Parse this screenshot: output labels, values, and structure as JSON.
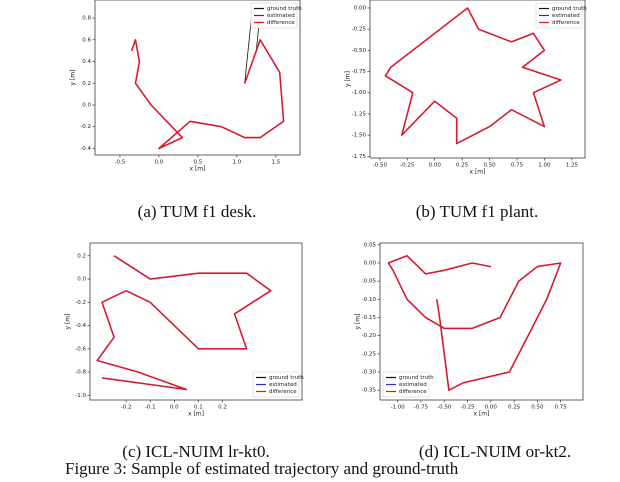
{
  "chart_data": [
    {
      "type": "line",
      "caption": "(a) TUM f1 desk.",
      "xlabel": "x [m]",
      "ylabel": "y [m]",
      "legend": "upper right",
      "xlim": [
        -0.82,
        1.81
      ],
      "ylim": [
        -0.46,
        0.966
      ],
      "xticks": [
        -0.5,
        {
          "value": 0,
          "label": "0.0"
        },
        0.5,
        {
          "value": 1,
          "label": "1.0"
        },
        1.5
      ],
      "yticks": [
        -0.4,
        -0.2,
        {
          "value": 0,
          "label": "0.0"
        },
        0.2,
        0.4,
        0.6,
        0.8
      ],
      "series": [
        {
          "name": "ground truth",
          "color": "#111111",
          "x": [
            -0.35,
            -0.3,
            -0.25,
            -0.3,
            -0.1,
            0.1,
            0.3,
            0.0,
            0.4,
            0.8,
            1.1,
            1.3,
            1.6,
            1.55,
            1.3,
            1.15,
            1.1,
            1.2,
            1.3,
            1.25
          ],
          "values": [
            0.5,
            0.6,
            0.4,
            0.2,
            0.0,
            -0.15,
            -0.3,
            -0.4,
            -0.15,
            -0.2,
            -0.3,
            -0.3,
            -0.15,
            0.3,
            0.6,
            0.3,
            0.2,
            0.9,
            0.85,
            0.5
          ]
        },
        {
          "name": "estimated",
          "color": "#2a2ad0",
          "x": [
            -0.35,
            -0.3,
            -0.25,
            -0.3,
            -0.1,
            0.1,
            0.3,
            0.0,
            0.4,
            0.8,
            1.1,
            1.3,
            1.6,
            1.55,
            1.3,
            1.15,
            1.1
          ],
          "values": [
            0.5,
            0.6,
            0.4,
            0.2,
            0.0,
            -0.15,
            -0.3,
            -0.4,
            -0.15,
            -0.2,
            -0.3,
            -0.3,
            -0.15,
            0.3,
            0.6,
            0.3,
            0.2
          ]
        },
        {
          "name": "difference",
          "color": "#e8141e",
          "x": [
            -0.35,
            -0.3,
            -0.25,
            -0.3,
            -0.1,
            0.1,
            0.3,
            0.0,
            0.4,
            0.8,
            1.1,
            1.3,
            1.6,
            1.55,
            1.3,
            1.15,
            1.1
          ],
          "values": [
            0.5,
            0.6,
            0.4,
            0.2,
            0.0,
            -0.15,
            -0.3,
            -0.4,
            -0.15,
            -0.2,
            -0.3,
            -0.3,
            -0.15,
            0.3,
            0.6,
            0.3,
            0.2
          ]
        }
      ]
    },
    {
      "type": "line",
      "caption": "(b) TUM f1 plant.",
      "xlabel": "x [m]",
      "ylabel": "y [m]",
      "legend": "upper right",
      "xlim": [
        -0.59,
        1.37
      ],
      "ylim": [
        -1.77,
        0.094
      ],
      "xticks": [
        {
          "value": -0.5,
          "label": "-0.50"
        },
        -0.25,
        {
          "value": 0,
          "label": "0.00"
        },
        0.25,
        {
          "value": 0.5,
          "label": "0.50"
        },
        0.75,
        {
          "value": 1,
          "label": "1.00"
        },
        1.25
      ],
      "yticks": [
        -1.75,
        {
          "value": -1.5,
          "label": "-1.50"
        },
        -1.25,
        {
          "value": -1,
          "label": "-1.00"
        },
        -0.75,
        {
          "value": -0.5,
          "label": "-0.50"
        },
        -0.25,
        {
          "value": 0,
          "label": "0.00"
        }
      ],
      "series": [
        {
          "name": "ground truth",
          "color": "#111111",
          "x": [
            -0.4,
            -0.2,
            0.0,
            0.2,
            0.3,
            0.4,
            0.7,
            0.9,
            1.0,
            0.8,
            1.15,
            0.9,
            1.0,
            0.7,
            0.5,
            0.2,
            0.2,
            0.0,
            -0.3,
            -0.2,
            -0.45,
            -0.4
          ],
          "values": [
            -0.7,
            -0.5,
            -0.3,
            -0.1,
            0.0,
            -0.25,
            -0.4,
            -0.3,
            -0.5,
            -0.7,
            -0.85,
            -1.0,
            -1.4,
            -1.2,
            -1.4,
            -1.6,
            -1.3,
            -1.1,
            -1.5,
            -1.0,
            -0.8,
            -0.7
          ]
        },
        {
          "name": "estimated",
          "color": "#2a2ad0",
          "x": [
            -0.4,
            -0.2,
            0.0,
            0.2,
            0.3,
            0.4,
            0.7,
            0.9,
            1.0,
            0.8,
            1.15,
            0.9,
            1.0,
            0.7,
            0.5,
            0.2,
            0.2,
            0.0,
            -0.3,
            -0.2,
            -0.45,
            -0.4
          ],
          "values": [
            -0.7,
            -0.5,
            -0.3,
            -0.1,
            0.0,
            -0.25,
            -0.4,
            -0.3,
            -0.5,
            -0.7,
            -0.85,
            -1.0,
            -1.4,
            -1.2,
            -1.4,
            -1.6,
            -1.3,
            -1.1,
            -1.5,
            -1.0,
            -0.8,
            -0.7
          ]
        },
        {
          "name": "difference",
          "color": "#e8141e",
          "x": [
            -0.4,
            -0.2,
            0.0,
            0.2,
            0.3,
            0.4,
            0.7,
            0.9,
            1.0,
            0.8,
            1.15,
            0.9,
            1.0,
            0.7,
            0.5,
            0.2,
            0.2,
            0.0,
            -0.3,
            -0.2,
            -0.45,
            -0.4
          ],
          "values": [
            -0.7,
            -0.5,
            -0.3,
            -0.1,
            0.0,
            -0.25,
            -0.4,
            -0.3,
            -0.5,
            -0.7,
            -0.85,
            -1.0,
            -1.4,
            -1.2,
            -1.4,
            -1.6,
            -1.3,
            -1.1,
            -1.5,
            -1.0,
            -0.8,
            -0.7
          ]
        }
      ]
    },
    {
      "type": "line",
      "caption": "(c) ICL-NUIM lr-kt0.",
      "xlabel": "x [m]",
      "ylabel": "y [m]",
      "legend": "lower right",
      "xlim": [
        -0.35,
        0.53
      ],
      "ylim": [
        -1.04,
        0.31
      ],
      "xticks": [
        -0.2,
        -0.1,
        {
          "value": 0,
          "label": "0.0"
        },
        0.1,
        0.2
      ],
      "yticks": [
        {
          "value": -1,
          "label": "-1.0"
        },
        -0.8,
        -0.6,
        -0.4,
        -0.2,
        {
          "value": 0,
          "label": "0.0"
        },
        0.2
      ],
      "series": [
        {
          "name": "ground truth",
          "color": "#111111",
          "x": [
            -0.25,
            -0.1,
            0.1,
            0.3,
            0.4,
            0.25,
            0.3,
            0.1,
            0.0,
            -0.1,
            -0.2,
            -0.3,
            -0.25,
            -0.32,
            -0.15,
            0.05,
            -0.3
          ],
          "values": [
            0.2,
            0.0,
            0.05,
            0.05,
            -0.1,
            -0.3,
            -0.6,
            -0.6,
            -0.4,
            -0.2,
            -0.1,
            -0.2,
            -0.5,
            -0.7,
            -0.8,
            -0.95,
            -0.85
          ]
        },
        {
          "name": "estimated",
          "color": "#2a2ad0",
          "x": [
            -0.25,
            -0.1,
            0.1,
            0.3,
            0.4,
            0.25,
            0.3,
            0.1,
            0.0,
            -0.1,
            -0.2,
            -0.3,
            -0.25,
            -0.32,
            -0.15,
            0.05,
            -0.3
          ],
          "values": [
            0.2,
            0.0,
            0.05,
            0.05,
            -0.1,
            -0.3,
            -0.6,
            -0.6,
            -0.4,
            -0.2,
            -0.1,
            -0.2,
            -0.5,
            -0.7,
            -0.8,
            -0.95,
            -0.85
          ]
        },
        {
          "name": "difference",
          "color": "#e8141e",
          "x": [
            -0.25,
            -0.1,
            0.1,
            0.3,
            0.4,
            0.25,
            0.3,
            0.1,
            0.0,
            -0.1,
            -0.2,
            -0.3,
            -0.25,
            -0.32,
            -0.15,
            0.05,
            -0.3
          ],
          "values": [
            0.2,
            0.0,
            0.05,
            0.05,
            -0.1,
            -0.3,
            -0.6,
            -0.6,
            -0.4,
            -0.2,
            -0.1,
            -0.2,
            -0.5,
            -0.7,
            -0.8,
            -0.95,
            -0.85
          ]
        }
      ]
    },
    {
      "type": "line",
      "caption": "(d) ICL-NUIM or-kt2.",
      "xlabel": "x [m]",
      "ylabel": "y [m]",
      "legend": "lower left",
      "xlim": [
        -1.19,
        0.99
      ],
      "ylim": [
        -0.377,
        0.055
      ],
      "xticks": [
        {
          "value": -1,
          "label": "-1.00"
        },
        -0.75,
        {
          "value": -0.5,
          "label": "-0.50"
        },
        -0.25,
        {
          "value": 0,
          "label": "0.00"
        },
        0.25,
        {
          "value": 0.5,
          "label": "0.50"
        },
        0.75
      ],
      "yticks": [
        -0.35,
        {
          "value": -0.3,
          "label": "-0.30"
        },
        -0.25,
        {
          "value": -0.2,
          "label": "-0.20"
        },
        -0.15,
        {
          "value": -0.1,
          "label": "-0.10"
        },
        -0.05,
        {
          "value": 0,
          "label": "0.00"
        },
        0.05
      ],
      "series": [
        {
          "name": "ground truth",
          "color": "#111111",
          "x": [
            0.0,
            -0.2,
            -0.5,
            -0.7,
            -0.9,
            -1.1,
            -1.05,
            -0.9,
            -0.7,
            -0.5,
            -0.2,
            0.1,
            0.3,
            0.5,
            0.75,
            0.6,
            0.4,
            0.2,
            -0.3,
            -0.45,
            -0.55,
            -0.58
          ],
          "values": [
            -0.01,
            0.0,
            -0.02,
            -0.03,
            0.02,
            0.0,
            -0.02,
            -0.1,
            -0.15,
            -0.18,
            -0.18,
            -0.15,
            -0.05,
            -0.01,
            0.0,
            -0.1,
            -0.2,
            -0.3,
            -0.33,
            -0.35,
            -0.15,
            -0.1
          ]
        },
        {
          "name": "estimated",
          "color": "#2a2ad0",
          "x": [
            0.0,
            -0.2,
            -0.5,
            -0.7,
            -0.9,
            -1.1,
            -1.05,
            -0.9,
            -0.7,
            -0.5,
            -0.2,
            0.1,
            0.3,
            0.5,
            0.75,
            0.6,
            0.4,
            0.2,
            -0.3,
            -0.45,
            -0.55,
            -0.58
          ],
          "values": [
            -0.01,
            0.0,
            -0.02,
            -0.03,
            0.02,
            0.0,
            -0.02,
            -0.1,
            -0.15,
            -0.18,
            -0.18,
            -0.15,
            -0.05,
            -0.01,
            0.0,
            -0.1,
            -0.2,
            -0.3,
            -0.33,
            -0.35,
            -0.15,
            -0.1
          ]
        },
        {
          "name": "difference",
          "color": "#e8141e",
          "x": [
            0.0,
            -0.2,
            -0.5,
            -0.7,
            -0.9,
            -1.1,
            -1.05,
            -0.9,
            -0.7,
            -0.5,
            -0.2,
            0.1,
            0.3,
            0.5,
            0.75,
            0.6,
            0.4,
            0.2,
            -0.3,
            -0.45,
            -0.55,
            -0.58
          ],
          "values": [
            -0.01,
            0.0,
            -0.02,
            -0.03,
            0.02,
            0.0,
            -0.02,
            -0.1,
            -0.15,
            -0.18,
            -0.18,
            -0.15,
            -0.05,
            -0.01,
            0.0,
            -0.1,
            -0.2,
            -0.3,
            -0.33,
            -0.35,
            -0.15,
            -0.1
          ]
        }
      ]
    }
  ],
  "figure_caption": "Figure 3: Sample of estimated trajectory and ground-truth"
}
